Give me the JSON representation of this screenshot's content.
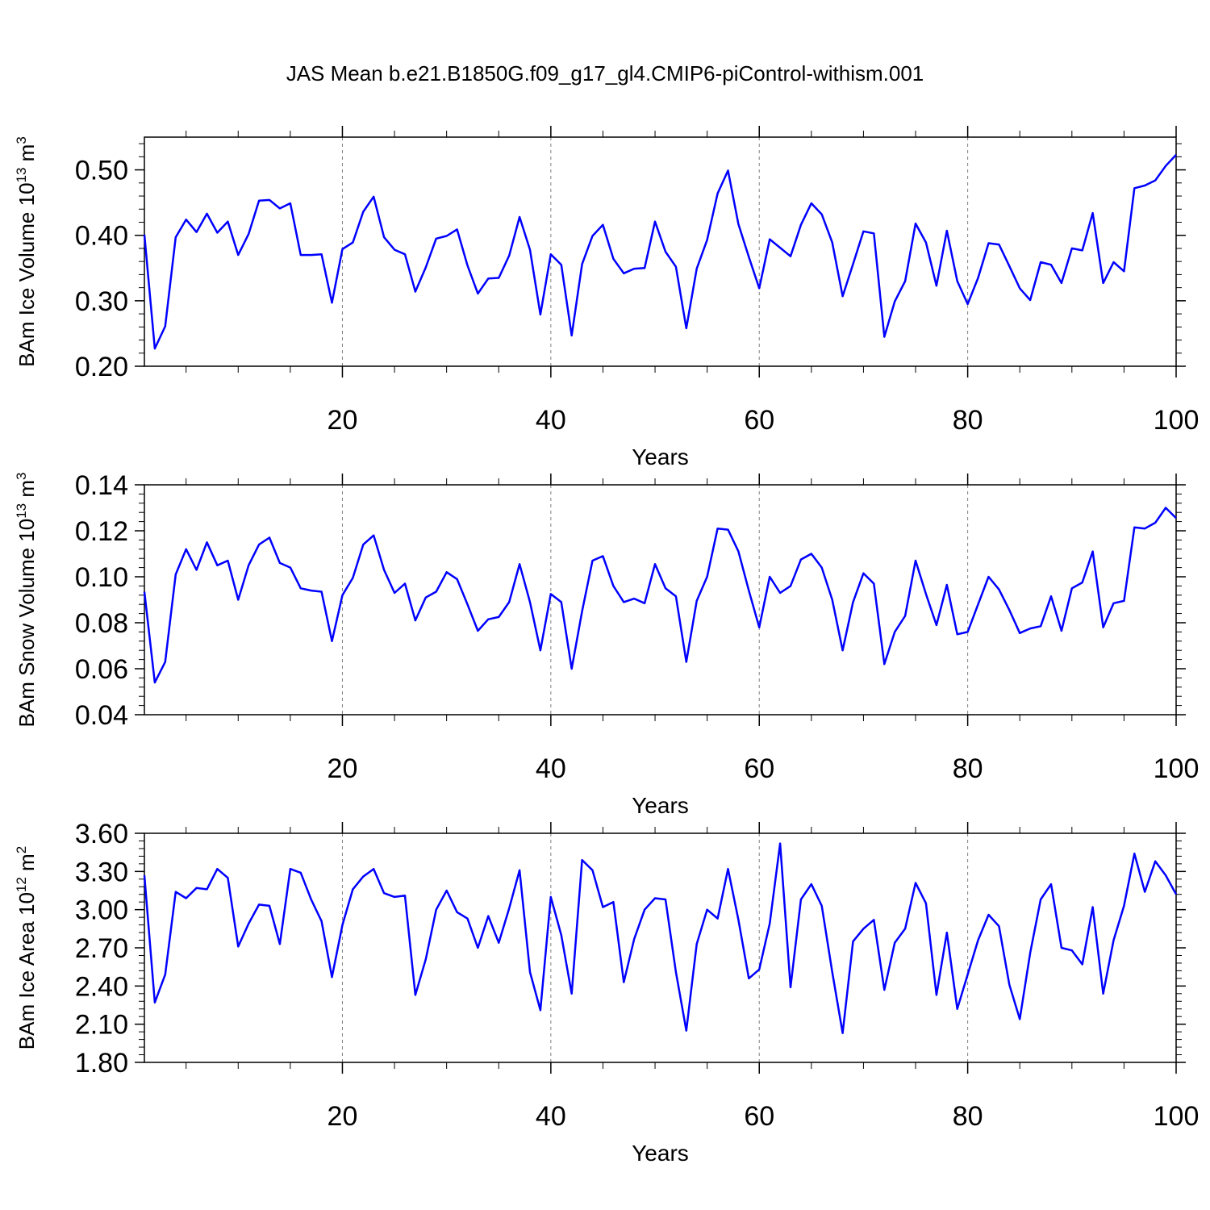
{
  "title": "JAS Mean b.e21.B1850G.f09_g17_gl4.CMIP6-piControl-withism.001",
  "colors": {
    "line": "#0000ff",
    "axis": "#000000",
    "grid": "#808080"
  },
  "chart_data": [
    {
      "type": "line",
      "ylabel_main": "BAm Ice Volume 10",
      "ylabel_exp": "13",
      "ylabel_unit": " m",
      "ylabel_unit_exp": "3",
      "xlabel": "Years",
      "xlim": [
        1,
        100
      ],
      "ylim": [
        0.2,
        0.55
      ],
      "ytick_values": [
        0.2,
        0.3,
        0.4,
        0.5
      ],
      "ytick_labels": [
        "0.20",
        "0.30",
        "0.40",
        "0.50"
      ],
      "xtick_values": [
        20,
        40,
        60,
        80,
        100
      ],
      "xtick_labels": [
        "20",
        "40",
        "60",
        "80",
        "100"
      ],
      "grid_x": [
        20,
        40,
        60,
        80
      ],
      "x_start": 1,
      "values": [
        0.401,
        0.227,
        0.261,
        0.397,
        0.424,
        0.405,
        0.433,
        0.404,
        0.421,
        0.37,
        0.402,
        0.453,
        0.454,
        0.441,
        0.449,
        0.37,
        0.37,
        0.371,
        0.297,
        0.379,
        0.389,
        0.436,
        0.459,
        0.397,
        0.378,
        0.371,
        0.314,
        0.351,
        0.395,
        0.399,
        0.409,
        0.354,
        0.311,
        0.334,
        0.335,
        0.369,
        0.428,
        0.378,
        0.279,
        0.371,
        0.355,
        0.247,
        0.356,
        0.399,
        0.416,
        0.364,
        0.342,
        0.349,
        0.35,
        0.421,
        0.375,
        0.352,
        0.258,
        0.349,
        0.393,
        0.464,
        0.499,
        0.417,
        0.367,
        0.319,
        0.394,
        0.381,
        0.368,
        0.416,
        0.449,
        0.432,
        0.389,
        0.307,
        0.356,
        0.406,
        0.403,
        0.245,
        0.299,
        0.33,
        0.418,
        0.389,
        0.323,
        0.407,
        0.33,
        0.295,
        0.335,
        0.388,
        0.386,
        0.353,
        0.319,
        0.301,
        0.359,
        0.355,
        0.327,
        0.38,
        0.377,
        0.434,
        0.327,
        0.359,
        0.345,
        0.472,
        0.476,
        0.484,
        0.506,
        0.523
      ]
    },
    {
      "type": "line",
      "ylabel_main": "BAm Snow Volume 10",
      "ylabel_exp": "13",
      "ylabel_unit": " m",
      "ylabel_unit_exp": "3",
      "xlabel": "Years",
      "xlim": [
        1,
        100
      ],
      "ylim": [
        0.04,
        0.14
      ],
      "ytick_values": [
        0.04,
        0.06,
        0.08,
        0.1,
        0.12,
        0.14
      ],
      "ytick_labels": [
        "0.04",
        "0.06",
        "0.08",
        "0.10",
        "0.12",
        "0.14"
      ],
      "xtick_values": [
        20,
        40,
        60,
        80,
        100
      ],
      "xtick_labels": [
        "20",
        "40",
        "60",
        "80",
        "100"
      ],
      "grid_x": [
        20,
        40,
        60,
        80
      ],
      "x_start": 1,
      "values": [
        0.0935,
        0.054,
        0.063,
        0.101,
        0.112,
        0.103,
        0.115,
        0.105,
        0.107,
        0.09,
        0.105,
        0.114,
        0.117,
        0.106,
        0.104,
        0.095,
        0.094,
        0.0935,
        0.072,
        0.092,
        0.0995,
        0.114,
        0.118,
        0.103,
        0.093,
        0.097,
        0.081,
        0.091,
        0.0935,
        0.102,
        0.099,
        0.088,
        0.0765,
        0.0815,
        0.0825,
        0.089,
        0.1055,
        0.089,
        0.068,
        0.0925,
        0.089,
        0.06,
        0.085,
        0.107,
        0.109,
        0.096,
        0.089,
        0.0905,
        0.0885,
        0.1055,
        0.095,
        0.0915,
        0.063,
        0.0895,
        0.1,
        0.121,
        0.1205,
        0.111,
        0.094,
        0.078,
        0.1,
        0.093,
        0.096,
        0.1075,
        0.11,
        0.104,
        0.09,
        0.068,
        0.089,
        0.1015,
        0.097,
        0.062,
        0.076,
        0.083,
        0.107,
        0.0925,
        0.079,
        0.0965,
        0.075,
        0.076,
        0.088,
        0.1,
        0.0945,
        0.0855,
        0.0755,
        0.0775,
        0.0785,
        0.0915,
        0.0765,
        0.095,
        0.0975,
        0.111,
        0.078,
        0.0885,
        0.0895,
        0.1215,
        0.121,
        0.1235,
        0.13,
        0.1255
      ]
    },
    {
      "type": "line",
      "ylabel_main": "BAm Ice Area 10",
      "ylabel_exp": "12",
      "ylabel_unit": " m",
      "ylabel_unit_exp": "2",
      "xlabel": "Years",
      "xlim": [
        1,
        100
      ],
      "ylim": [
        1.8,
        3.6
      ],
      "ytick_values": [
        1.8,
        2.1,
        2.4,
        2.7,
        3.0,
        3.3,
        3.6
      ],
      "ytick_labels": [
        "1.80",
        "2.10",
        "2.40",
        "2.70",
        "3.00",
        "3.30",
        "3.60"
      ],
      "xtick_values": [
        20,
        40,
        60,
        80,
        100
      ],
      "xtick_labels": [
        "20",
        "40",
        "60",
        "80",
        "100"
      ],
      "grid_x": [
        20,
        40,
        60,
        80
      ],
      "x_start": 1,
      "values": [
        3.27,
        2.27,
        2.49,
        3.14,
        3.09,
        3.17,
        3.16,
        3.32,
        3.25,
        2.71,
        2.89,
        3.04,
        3.03,
        2.73,
        3.32,
        3.29,
        3.08,
        2.91,
        2.47,
        2.88,
        3.16,
        3.26,
        3.32,
        3.13,
        3.1,
        3.11,
        2.33,
        2.61,
        3.0,
        3.15,
        2.98,
        2.93,
        2.7,
        2.95,
        2.74,
        3.01,
        3.31,
        2.51,
        2.21,
        3.1,
        2.8,
        2.34,
        3.39,
        3.31,
        3.02,
        3.06,
        2.43,
        2.77,
        3.0,
        3.09,
        3.08,
        2.51,
        2.05,
        2.73,
        3.0,
        2.93,
        3.32,
        2.92,
        2.46,
        2.53,
        2.89,
        3.52,
        2.39,
        3.08,
        3.2,
        3.03,
        2.51,
        2.03,
        2.75,
        2.85,
        2.92,
        2.37,
        2.74,
        2.85,
        3.21,
        3.05,
        2.33,
        2.82,
        2.22,
        2.49,
        2.76,
        2.96,
        2.87,
        2.41,
        2.14,
        2.66,
        3.08,
        3.2,
        2.7,
        2.68,
        2.57,
        3.02,
        2.34,
        2.76,
        3.03,
        3.44,
        3.14,
        3.38,
        3.27,
        3.12
      ]
    }
  ]
}
